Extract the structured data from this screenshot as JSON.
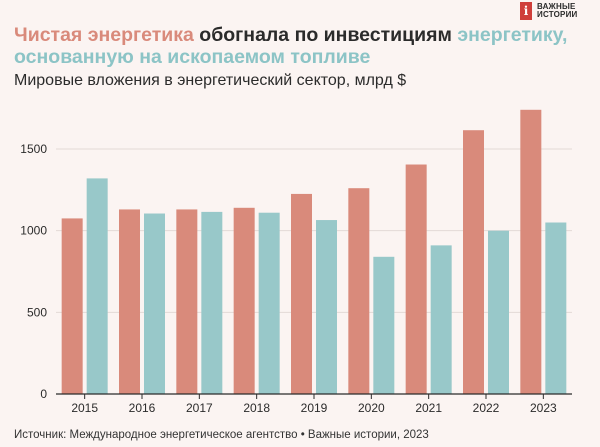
{
  "header": {
    "title_part1": "Чистая энергетика",
    "title_part2": " обогнала по инвестициям ",
    "title_part3": "энергетику,",
    "title_part4": "основанную на ископаемом топливе",
    "subtitle": "Мировые вложения в энергетический сектор, млрд $"
  },
  "logo": {
    "badge_text": "i",
    "line1": "ВАЖНЫЕ",
    "line2": "ИСТОРИИ"
  },
  "footer": {
    "source": "Источник: Международное энергетическое агентство • Важные истории, 2023"
  },
  "colors": {
    "clean": "#d98a7b",
    "fossil": "#98c8c9",
    "grid": "#e3dad7",
    "axis": "#2b2b2b"
  },
  "chart_data": {
    "type": "bar",
    "title": "Чистая энергетика обогнала по инвестициям энергетику, основанную на ископаемом топливе",
    "ylabel": "Мировые вложения в энергетический сектор, млрд $",
    "xlabel": "",
    "categories": [
      "2015",
      "2016",
      "2017",
      "2018",
      "2019",
      "2020",
      "2021",
      "2022",
      "2023"
    ],
    "series": [
      {
        "name": "Чистая энергетика",
        "color": "#d98a7b",
        "values": [
          1075,
          1130,
          1130,
          1140,
          1225,
          1260,
          1405,
          1615,
          1740
        ]
      },
      {
        "name": "Ископаемое топливо",
        "color": "#98c8c9",
        "values": [
          1320,
          1105,
          1115,
          1110,
          1065,
          840,
          910,
          1000,
          1050
        ]
      }
    ],
    "ylim": [
      0,
      1800
    ],
    "yticks": [
      0,
      500,
      1000,
      1500
    ],
    "grid": true
  }
}
